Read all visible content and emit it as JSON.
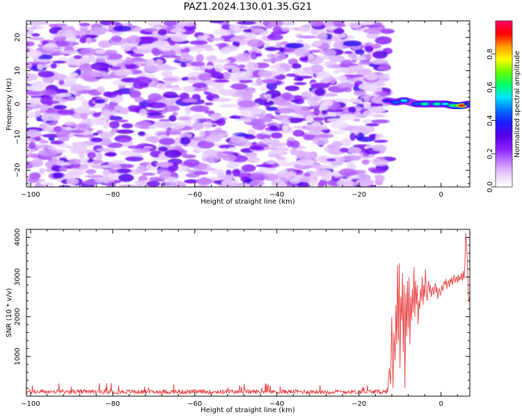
{
  "figure_title": "PAZ1.2024.130.01.35.G21",
  "chart_data": [
    {
      "type": "heatmap",
      "xlabel": "Height of straight line (km)",
      "ylabel": "Frequency (Hz)",
      "xlim": [
        -101,
        7
      ],
      "ylim": [
        -25,
        25
      ],
      "x_ticks": [
        -100,
        -80,
        -60,
        -40,
        -20,
        0
      ],
      "y_ticks": [
        -20,
        -10,
        0,
        10,
        20
      ],
      "colorbar": {
        "label": "Normalized spectral amplitude",
        "range": [
          0,
          1
        ],
        "ticks": [
          0.0,
          0.2,
          0.4,
          0.6,
          0.8
        ],
        "colormap": [
          "#ffffff",
          "#e9d0ff",
          "#c27bff",
          "#8a1eff",
          "#5a00e6",
          "#1c1cff",
          "#0070ff",
          "#00e5ff",
          "#00ff66",
          "#66ff00",
          "#ffff00",
          "#ff9900",
          "#ff0000",
          "#ff0066"
        ]
      },
      "noise_region": {
        "x_range": [
          -101,
          -13
        ],
        "y_range": [
          -25,
          25
        ],
        "typical_amplitude": [
          0.05,
          0.35
        ]
      },
      "signal_track": [
        {
          "x": -13,
          "y": 1.0,
          "amp": 0.35
        },
        {
          "x": -11,
          "y": 0.5,
          "amp": 0.45
        },
        {
          "x": -9,
          "y": 1.0,
          "amp": 0.55
        },
        {
          "x": -6,
          "y": 0.0,
          "amp": 0.45
        },
        {
          "x": -4,
          "y": 0.0,
          "amp": 0.6
        },
        {
          "x": -1,
          "y": 0.0,
          "amp": 0.6
        },
        {
          "x": 1,
          "y": 0.0,
          "amp": 0.55
        },
        {
          "x": 3,
          "y": -0.5,
          "amp": 0.65
        },
        {
          "x": 5,
          "y": -0.5,
          "amp": 0.95
        },
        {
          "x": 7,
          "y": 0.0,
          "amp": 0.5
        }
      ]
    },
    {
      "type": "line",
      "xlabel": "Height of straight line (km)",
      "ylabel": "SNR (10 * v/v)",
      "xlim": [
        -101,
        7
      ],
      "ylim": [
        0,
        4200
      ],
      "x_ticks": [
        -100,
        -80,
        -60,
        -40,
        -20,
        0
      ],
      "y_ticks": [
        1000,
        2000,
        3000,
        4000
      ],
      "series": [
        {
          "color": "#e8393a",
          "noise_floor": {
            "x_range": [
              -101,
              -13
            ],
            "mean": 110,
            "peak": 330
          },
          "x": [
            -13,
            -12.6,
            -12.3,
            -12,
            -11.7,
            -11.5,
            -11.2,
            -11,
            -10.8,
            -10.6,
            -10.4,
            -10.2,
            -10,
            -9.8,
            -9.6,
            -9.4,
            -9.2,
            -9,
            -8.8,
            -8.6,
            -8.4,
            -8.2,
            -8,
            -7.8,
            -7.6,
            -7.4,
            -7.2,
            -7,
            -6.8,
            -6.6,
            -6.4,
            -6.2,
            -6,
            -5.8,
            -5.6,
            -5.4,
            -5.2,
            -5,
            -4.8,
            -4.6,
            -4.4,
            -4.2,
            -4,
            -3.8,
            -3.6,
            -3.4,
            -3.2,
            -3,
            -2.8,
            -2.6,
            -2.4,
            -2.2,
            -2,
            -1.8,
            -1.6,
            -1.4,
            -1.2,
            -1,
            -0.8,
            -0.6,
            -0.4,
            -0.2,
            0,
            0.2,
            0.4,
            0.6,
            0.8,
            1,
            1.2,
            1.4,
            1.6,
            1.8,
            2,
            2.2,
            2.4,
            2.6,
            2.8,
            3,
            3.2,
            3.4,
            3.6,
            3.8,
            4,
            4.2,
            4.4,
            4.6,
            4.8,
            5,
            5.2,
            5.4,
            5.6,
            5.8,
            6,
            6.2,
            6.4,
            6.6,
            6.8,
            7
          ],
          "y": [
            150,
            700,
            300,
            2000,
            200,
            1600,
            900,
            2300,
            1300,
            3300,
            1400,
            3350,
            700,
            2500,
            1900,
            3100,
            1100,
            2800,
            200,
            2600,
            1500,
            2900,
            1700,
            3000,
            1300,
            2500,
            1900,
            2700,
            2100,
            3250,
            2000,
            2900,
            2300,
            2800,
            1800,
            2400,
            2200,
            2700,
            2400,
            3000,
            2300,
            2800,
            2500,
            3200,
            2600,
            2400,
            2750,
            2900,
            2600,
            2800,
            2500,
            2650,
            2750,
            2550,
            2700,
            2850,
            2600,
            2750,
            2450,
            2650,
            2700,
            2550,
            2600,
            2800,
            2650,
            2750,
            2900,
            2800,
            2950,
            2700,
            2850,
            2900,
            2750,
            2950,
            2850,
            3000,
            2800,
            2950,
            3050,
            2850,
            2950,
            3000,
            2850,
            3050,
            2900,
            3000,
            2950,
            3100,
            2900,
            3150,
            2950,
            3300,
            4100,
            3800,
            3400,
            2600,
            2400,
            2500
          ]
        }
      ]
    }
  ]
}
